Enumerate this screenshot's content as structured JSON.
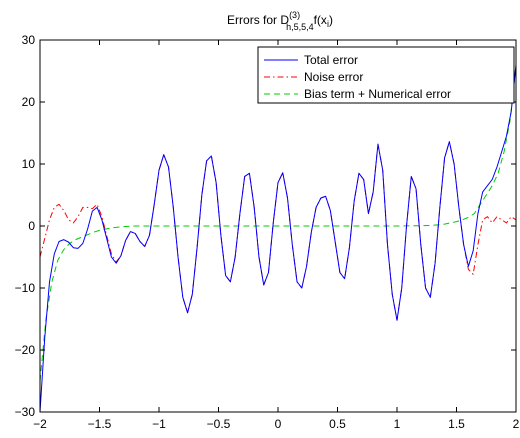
{
  "chart_data": {
    "type": "line",
    "title": {
      "prefix": "Errors for D",
      "superscript": "(3)",
      "subscript": "h,5,5,4",
      "suffix": "f(x",
      "suffix_sub": "i",
      "suffix_end": ")"
    },
    "xlabel": "",
    "ylabel": "",
    "xlim": [
      -2,
      2
    ],
    "ylim": [
      -30,
      30
    ],
    "x_ticks": [
      -2,
      -1.5,
      -1,
      -0.5,
      0,
      0.5,
      1,
      1.5,
      2
    ],
    "x_tick_labels": [
      "−2",
      "−1.5",
      "−1",
      "−0.5",
      "0",
      "0.5",
      "1",
      "1.5",
      "2"
    ],
    "y_ticks": [
      -30,
      -20,
      -10,
      0,
      10,
      20,
      30
    ],
    "y_tick_labels": [
      "−30",
      "−20",
      "−10",
      "0",
      "10",
      "20",
      "30"
    ],
    "grid": false,
    "legend_position": "top-right",
    "series": [
      {
        "name": "Total error",
        "color": "#0000ff",
        "dash": "solid",
        "x": [
          -2.0,
          -1.96,
          -1.92,
          -1.88,
          -1.84,
          -1.8,
          -1.76,
          -1.72,
          -1.68,
          -1.64,
          -1.6,
          -1.56,
          -1.52,
          -1.48,
          -1.44,
          -1.4,
          -1.36,
          -1.32,
          -1.28,
          -1.24,
          -1.2,
          -1.16,
          -1.12,
          -1.08,
          -1.04,
          -1.0,
          -0.96,
          -0.92,
          -0.88,
          -0.84,
          -0.8,
          -0.76,
          -0.72,
          -0.68,
          -0.64,
          -0.6,
          -0.56,
          -0.52,
          -0.48,
          -0.44,
          -0.4,
          -0.36,
          -0.32,
          -0.28,
          -0.24,
          -0.2,
          -0.16,
          -0.12,
          -0.08,
          -0.04,
          0.0,
          0.04,
          0.08,
          0.12,
          0.16,
          0.2,
          0.24,
          0.28,
          0.32,
          0.36,
          0.4,
          0.44,
          0.48,
          0.52,
          0.56,
          0.6,
          0.64,
          0.68,
          0.72,
          0.76,
          0.8,
          0.84,
          0.88,
          0.92,
          0.96,
          1.0,
          1.04,
          1.08,
          1.12,
          1.16,
          1.2,
          1.24,
          1.28,
          1.32,
          1.36,
          1.4,
          1.44,
          1.48,
          1.52,
          1.56,
          1.6,
          1.64,
          1.68,
          1.72,
          1.76,
          1.8,
          1.84,
          1.88,
          1.92,
          1.96,
          2.0
        ],
        "y": [
          -30.0,
          -18.0,
          -9.0,
          -4.5,
          -2.5,
          -2.2,
          -2.6,
          -3.5,
          -3.6,
          -2.8,
          -0.5,
          2.4,
          3.0,
          1.0,
          -2.0,
          -5.0,
          -6.0,
          -4.8,
          -2.3,
          -0.9,
          -1.2,
          -2.5,
          -3.3,
          -1.5,
          3.5,
          9.0,
          11.5,
          9.5,
          3.0,
          -5.0,
          -11.5,
          -14.0,
          -11.0,
          -3.5,
          5.0,
          10.5,
          11.3,
          7.0,
          -1.5,
          -8.0,
          -9.0,
          -5.0,
          2.0,
          8.0,
          8.5,
          3.0,
          -5.0,
          -9.5,
          -7.5,
          0.5,
          7.0,
          8.6,
          4.5,
          -3.0,
          -9.0,
          -10.0,
          -6.5,
          -1.0,
          3.0,
          4.5,
          4.8,
          2.5,
          -2.5,
          -7.5,
          -8.5,
          -3.5,
          4.0,
          8.5,
          7.5,
          2.0,
          5.5,
          13.2,
          9.0,
          -3.0,
          -11.0,
          -15.2,
          -10.0,
          0.0,
          8.0,
          6.0,
          -3.0,
          -10.0,
          -11.5,
          -6.0,
          3.0,
          11.0,
          13.6,
          10.0,
          3.0,
          -3.0,
          -6.5,
          -4.0,
          2.0,
          5.5,
          6.5,
          7.5,
          9.5,
          12.0,
          14.5,
          18.5,
          26.0
        ]
      },
      {
        "name": "Noise error",
        "color": "#ff0000",
        "dash": "dash-dot",
        "x": [
          -2.0,
          -1.96,
          -1.92,
          -1.88,
          -1.84,
          -1.8,
          -1.76,
          -1.72,
          -1.68,
          -1.64,
          -1.6,
          -1.56,
          -1.52,
          -1.48,
          -1.44,
          -1.4,
          -1.36,
          -1.32,
          -1.28,
          -1.24,
          -1.2,
          -1.16,
          -1.12,
          -1.08,
          -1.04,
          -1.0,
          -0.96,
          -0.92,
          -0.88,
          -0.84,
          -0.8,
          -0.76,
          -0.72,
          -0.68,
          -0.64,
          -0.6,
          -0.56,
          -0.52,
          -0.48,
          -0.44,
          -0.4,
          -0.36,
          -0.32,
          -0.28,
          -0.24,
          -0.2,
          -0.16,
          -0.12,
          -0.08,
          -0.04,
          0.0,
          0.04,
          0.08,
          0.12,
          0.16,
          0.2,
          0.24,
          0.28,
          0.32,
          0.36,
          0.4,
          0.44,
          0.48,
          0.52,
          0.56,
          0.6,
          0.64,
          0.68,
          0.72,
          0.76,
          0.8,
          0.84,
          0.88,
          0.92,
          0.96,
          1.0,
          1.04,
          1.08,
          1.12,
          1.16,
          1.2,
          1.24,
          1.28,
          1.32,
          1.36,
          1.4,
          1.44,
          1.48,
          1.52,
          1.56,
          1.6,
          1.64,
          1.68,
          1.72,
          1.76,
          1.8,
          1.84,
          1.88,
          1.92,
          1.96,
          2.0
        ],
        "y": [
          -5.0,
          -2.0,
          1.0,
          3.0,
          3.5,
          2.5,
          1.0,
          0.5,
          1.5,
          3.0,
          3.0,
          2.8,
          3.5,
          1.5,
          -1.5,
          -4.5,
          -5.8,
          -4.8,
          -2.3,
          -0.9,
          -1.2,
          -2.5,
          -3.3,
          -1.5,
          3.5,
          9.0,
          11.5,
          9.5,
          3.0,
          -5.0,
          -11.5,
          -14.0,
          -11.0,
          -3.5,
          5.0,
          10.5,
          11.3,
          7.0,
          -1.5,
          -8.0,
          -9.0,
          -5.0,
          2.0,
          8.0,
          8.5,
          3.0,
          -5.0,
          -9.5,
          -7.5,
          0.5,
          7.0,
          8.6,
          4.5,
          -3.0,
          -9.0,
          -10.0,
          -6.5,
          -1.0,
          3.0,
          4.5,
          4.8,
          2.5,
          -2.5,
          -7.5,
          -8.5,
          -3.5,
          4.0,
          8.5,
          7.5,
          2.0,
          5.5,
          13.2,
          9.0,
          -3.0,
          -11.0,
          -15.2,
          -10.0,
          0.0,
          8.0,
          6.0,
          -3.0,
          -10.0,
          -11.5,
          -6.0,
          3.0,
          11.0,
          13.6,
          10.0,
          3.0,
          -3.0,
          -7.0,
          -7.8,
          -3.0,
          1.0,
          1.5,
          0.5,
          1.5,
          1.0,
          0.5,
          1.5,
          1.0
        ]
      },
      {
        "name": "Bias term + Numerical error",
        "color": "#00cc00",
        "dash": "dashed",
        "x": [
          -2.0,
          -1.95,
          -1.9,
          -1.85,
          -1.8,
          -1.75,
          -1.7,
          -1.65,
          -1.6,
          -1.55,
          -1.5,
          -1.45,
          -1.4,
          -1.35,
          -1.3,
          -1.2,
          -1.1,
          -1.0,
          -0.5,
          0.0,
          0.5,
          1.0,
          1.2,
          1.3,
          1.35,
          1.4,
          1.45,
          1.5,
          1.55,
          1.6,
          1.65,
          1.7,
          1.75,
          1.8,
          1.85,
          1.9,
          1.95,
          2.0
        ],
        "y": [
          -25.0,
          -15.0,
          -9.0,
          -5.5,
          -3.8,
          -2.8,
          -2.2,
          -1.8,
          -1.4,
          -1.0,
          -0.7,
          -0.5,
          -0.3,
          -0.2,
          -0.1,
          0.0,
          0.0,
          0.0,
          0.0,
          0.0,
          0.0,
          0.0,
          0.05,
          0.1,
          0.2,
          0.3,
          0.5,
          0.7,
          1.0,
          1.4,
          2.0,
          3.5,
          5.0,
          6.5,
          8.5,
          12.0,
          17.0,
          26.0
        ]
      }
    ]
  }
}
